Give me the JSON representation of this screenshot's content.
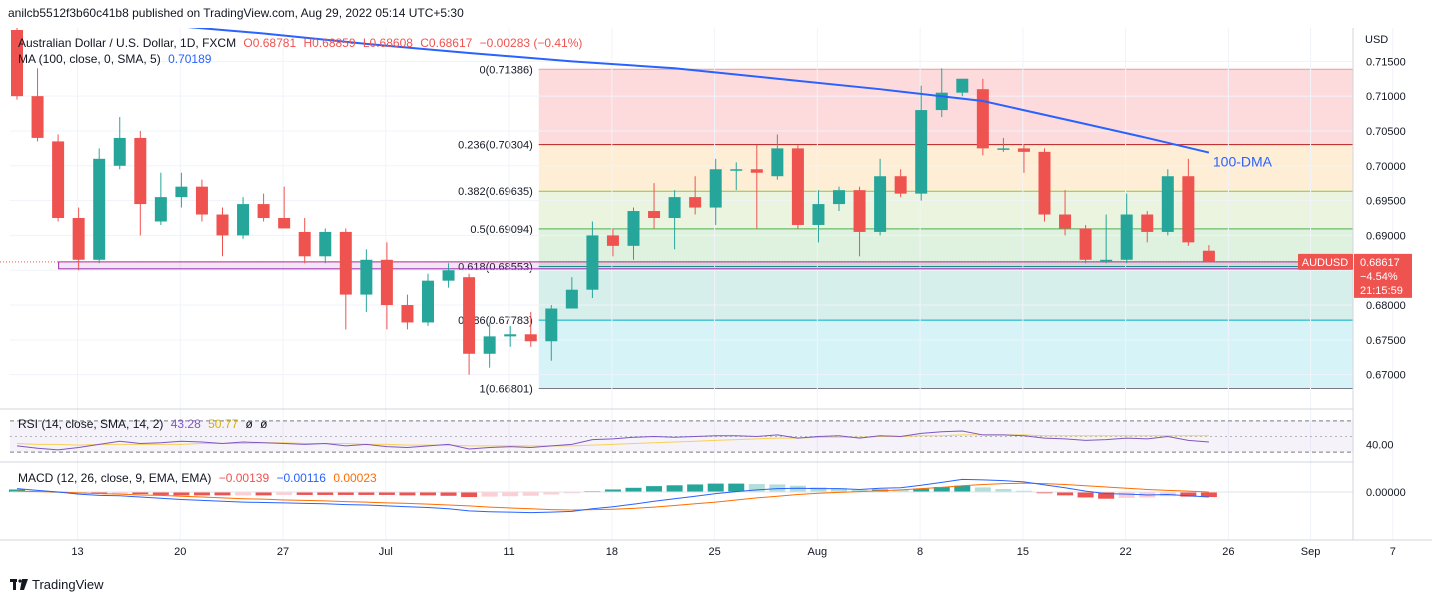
{
  "header": {
    "published_line": "anilcb5512f3b60c41b8 published on TradingView.com, Aug 29, 2022 05:14 UTC+5:30"
  },
  "main_legend": {
    "symbol": "Australian Dollar / U.S. Dollar, 1D, FXCM",
    "open": "O0.68781",
    "high": "H0.68859",
    "low": "L0.68608",
    "close": "C0.68617",
    "change": "−0.00283 (−0.41%)",
    "ma_label": "MA (100, close, 0, SMA, 5)",
    "ma_value": "0.70189"
  },
  "annotations": {
    "dma_label": "100-DMA"
  },
  "price_badge": {
    "symbol": "AUDUSD",
    "price": "0.68617",
    "change": "−4.54%",
    "countdown": "21:15:59"
  },
  "rsi_legend": {
    "label": "RSI (14, close, SMA, 14, 2)",
    "rsi": "43.28",
    "sma": "50.77",
    "v3": "ø",
    "v4": "ø"
  },
  "macd_legend": {
    "label": "MACD (12, 26, close, 9, EMA, EMA)",
    "hist": "−0.00139",
    "macd": "−0.00116",
    "signal": "0.00023"
  },
  "footer": {
    "brand": "TradingView"
  },
  "colors": {
    "up": "#26a69a",
    "down": "#ef5350",
    "ma": "#2962ff",
    "rsi": "#7e57c2",
    "rsi_sma": "#f7d154",
    "macd": "#2962ff",
    "signal": "#ff6d00"
  },
  "chart_data": {
    "type": "candlestick",
    "title": "Australian Dollar / U.S. Dollar, 1D, FXCM",
    "currency": "USD",
    "ylim": [
      0.6655,
      0.7195
    ],
    "y_ticks": [
      "0.71500",
      "0.71000",
      "0.70500",
      "0.70000",
      "0.69500",
      "0.69000",
      "0.68500",
      "0.68000",
      "0.67500",
      "0.67000"
    ],
    "x_tick_labels": [
      {
        "i": 1,
        "label": "13"
      },
      {
        "i": 6,
        "label": "20"
      },
      {
        "i": 11,
        "label": "27"
      },
      {
        "i": 16,
        "label": "Jul"
      },
      {
        "i": 22,
        "label": "11"
      },
      {
        "i": 27,
        "label": "18"
      },
      {
        "i": 32,
        "label": "25"
      },
      {
        "i": 37,
        "label": "Aug"
      },
      {
        "i": 42,
        "label": "8"
      },
      {
        "i": 47,
        "label": "15"
      },
      {
        "i": 52,
        "label": "22"
      },
      {
        "i": 57,
        "label": "26"
      },
      {
        "i": 61,
        "label": "Sep"
      },
      {
        "i": 65,
        "label": "7"
      }
    ],
    "candles": [
      {
        "o": 0.7195,
        "h": 0.72,
        "l": 0.7095,
        "c": 0.71
      },
      {
        "o": 0.71,
        "h": 0.714,
        "l": 0.7035,
        "c": 0.704
      },
      {
        "o": 0.7035,
        "h": 0.7045,
        "l": 0.692,
        "c": 0.6925
      },
      {
        "o": 0.6925,
        "h": 0.694,
        "l": 0.685,
        "c": 0.6865
      },
      {
        "o": 0.6865,
        "h": 0.7025,
        "l": 0.686,
        "c": 0.701
      },
      {
        "o": 0.7,
        "h": 0.707,
        "l": 0.6995,
        "c": 0.704
      },
      {
        "o": 0.704,
        "h": 0.705,
        "l": 0.69,
        "c": 0.6945
      },
      {
        "o": 0.692,
        "h": 0.699,
        "l": 0.6915,
        "c": 0.6955
      },
      {
        "o": 0.6955,
        "h": 0.699,
        "l": 0.694,
        "c": 0.697
      },
      {
        "o": 0.697,
        "h": 0.698,
        "l": 0.692,
        "c": 0.693
      },
      {
        "o": 0.693,
        "h": 0.694,
        "l": 0.687,
        "c": 0.69
      },
      {
        "o": 0.69,
        "h": 0.6955,
        "l": 0.6895,
        "c": 0.6945
      },
      {
        "o": 0.6945,
        "h": 0.696,
        "l": 0.692,
        "c": 0.6925
      },
      {
        "o": 0.6925,
        "h": 0.697,
        "l": 0.691,
        "c": 0.691
      },
      {
        "o": 0.6905,
        "h": 0.6925,
        "l": 0.686,
        "c": 0.687
      },
      {
        "o": 0.687,
        "h": 0.691,
        "l": 0.686,
        "c": 0.6905
      },
      {
        "o": 0.6905,
        "h": 0.691,
        "l": 0.6765,
        "c": 0.6815
      },
      {
        "o": 0.6815,
        "h": 0.688,
        "l": 0.679,
        "c": 0.6865
      },
      {
        "o": 0.6865,
        "h": 0.689,
        "l": 0.6765,
        "c": 0.68
      },
      {
        "o": 0.68,
        "h": 0.6815,
        "l": 0.6765,
        "c": 0.6775
      },
      {
        "o": 0.6775,
        "h": 0.6845,
        "l": 0.677,
        "c": 0.6835
      },
      {
        "o": 0.6835,
        "h": 0.686,
        "l": 0.6825,
        "c": 0.685
      },
      {
        "o": 0.684,
        "h": 0.6845,
        "l": 0.67,
        "c": 0.673
      },
      {
        "o": 0.673,
        "h": 0.6775,
        "l": 0.671,
        "c": 0.6755
      },
      {
        "o": 0.6755,
        "h": 0.677,
        "l": 0.674,
        "c": 0.6758
      },
      {
        "o": 0.6758,
        "h": 0.679,
        "l": 0.674,
        "c": 0.6748
      },
      {
        "o": 0.6748,
        "h": 0.68,
        "l": 0.672,
        "c": 0.6795
      },
      {
        "o": 0.6795,
        "h": 0.684,
        "l": 0.6795,
        "c": 0.6822
      },
      {
        "o": 0.6822,
        "h": 0.692,
        "l": 0.681,
        "c": 0.69
      },
      {
        "o": 0.69,
        "h": 0.691,
        "l": 0.687,
        "c": 0.6885
      },
      {
        "o": 0.6885,
        "h": 0.694,
        "l": 0.6865,
        "c": 0.6935
      },
      {
        "o": 0.6935,
        "h": 0.6975,
        "l": 0.691,
        "c": 0.6925
      },
      {
        "o": 0.6925,
        "h": 0.6965,
        "l": 0.688,
        "c": 0.6955
      },
      {
        "o": 0.6955,
        "h": 0.6985,
        "l": 0.693,
        "c": 0.694
      },
      {
        "o": 0.694,
        "h": 0.701,
        "l": 0.6915,
        "c": 0.6995
      },
      {
        "o": 0.6995,
        "h": 0.7005,
        "l": 0.6965,
        "c": 0.6995
      },
      {
        "o": 0.6995,
        "h": 0.703,
        "l": 0.691,
        "c": 0.699
      },
      {
        "o": 0.6985,
        "h": 0.7045,
        "l": 0.698,
        "c": 0.7025
      },
      {
        "o": 0.7025,
        "h": 0.703,
        "l": 0.691,
        "c": 0.6915
      },
      {
        "o": 0.6915,
        "h": 0.6965,
        "l": 0.689,
        "c": 0.6945
      },
      {
        "o": 0.6945,
        "h": 0.697,
        "l": 0.6935,
        "c": 0.6965
      },
      {
        "o": 0.6965,
        "h": 0.697,
        "l": 0.687,
        "c": 0.6905
      },
      {
        "o": 0.6905,
        "h": 0.701,
        "l": 0.69,
        "c": 0.6985
      },
      {
        "o": 0.6985,
        "h": 0.6995,
        "l": 0.6955,
        "c": 0.696
      },
      {
        "o": 0.696,
        "h": 0.7115,
        "l": 0.695,
        "c": 0.708
      },
      {
        "o": 0.708,
        "h": 0.714,
        "l": 0.707,
        "c": 0.7105
      },
      {
        "o": 0.7105,
        "h": 0.7125,
        "l": 0.71,
        "c": 0.7125
      },
      {
        "o": 0.711,
        "h": 0.7125,
        "l": 0.7015,
        "c": 0.7025
      },
      {
        "o": 0.7025,
        "h": 0.704,
        "l": 0.702,
        "c": 0.7025
      },
      {
        "o": 0.7025,
        "h": 0.703,
        "l": 0.699,
        "c": 0.702
      },
      {
        "o": 0.702,
        "h": 0.7025,
        "l": 0.692,
        "c": 0.693
      },
      {
        "o": 0.693,
        "h": 0.6965,
        "l": 0.69,
        "c": 0.691
      },
      {
        "o": 0.691,
        "h": 0.6915,
        "l": 0.686,
        "c": 0.6865
      },
      {
        "o": 0.6865,
        "h": 0.693,
        "l": 0.686,
        "c": 0.6865
      },
      {
        "o": 0.6865,
        "h": 0.696,
        "l": 0.686,
        "c": 0.693
      },
      {
        "o": 0.693,
        "h": 0.6935,
        "l": 0.689,
        "c": 0.6905
      },
      {
        "o": 0.6905,
        "h": 0.6995,
        "l": 0.69,
        "c": 0.6985
      },
      {
        "o": 0.6985,
        "h": 0.701,
        "l": 0.6885,
        "c": 0.689
      },
      {
        "o": 0.6878,
        "h": 0.6886,
        "l": 0.6861,
        "c": 0.6862
      }
    ],
    "ma100": [
      {
        "i": 8,
        "v": 0.72
      },
      {
        "i": 12,
        "v": 0.719
      },
      {
        "i": 17,
        "v": 0.7175
      },
      {
        "i": 22,
        "v": 0.7162
      },
      {
        "i": 27,
        "v": 0.715
      },
      {
        "i": 32,
        "v": 0.714
      },
      {
        "i": 37,
        "v": 0.7125
      },
      {
        "i": 42,
        "v": 0.711
      },
      {
        "i": 47,
        "v": 0.7093
      },
      {
        "i": 52,
        "v": 0.706
      },
      {
        "i": 55,
        "v": 0.704
      },
      {
        "i": 58,
        "v": 0.7019
      }
    ],
    "fibonacci": {
      "start_index": 25,
      "levels": [
        {
          "ratio": "0",
          "value": 0.71386,
          "label": "0(0.71386)"
        },
        {
          "ratio": "0.236",
          "value": 0.70304,
          "label": "0.236(0.70304)"
        },
        {
          "ratio": "0.382",
          "value": 0.69635,
          "label": "0.382(0.69635)"
        },
        {
          "ratio": "0.5",
          "value": 0.69094,
          "label": "0.5(0.69094)"
        },
        {
          "ratio": "0.618",
          "value": 0.68553,
          "label": "0.618(0.68553)"
        },
        {
          "ratio": "0.786",
          "value": 0.67783,
          "label": "0.786(0.67783)"
        },
        {
          "ratio": "1",
          "value": 0.66801,
          "label": "1(0.66801)"
        }
      ]
    },
    "support_zone": {
      "from_index": 3,
      "upper": 0.6862,
      "lower": 0.6852
    },
    "rsi": {
      "label_level": "40.00",
      "values": [
        38,
        35,
        33,
        36,
        40,
        44,
        41,
        42,
        44,
        43,
        41,
        43,
        42,
        41,
        40,
        41,
        38,
        40,
        37,
        36,
        38,
        40,
        34,
        36,
        37,
        36,
        38,
        40,
        46,
        47,
        49,
        50,
        49,
        50,
        51,
        51,
        50,
        52,
        48,
        50,
        51,
        48,
        51,
        50,
        54,
        56,
        57,
        52,
        52,
        51,
        48,
        47,
        45,
        46,
        48,
        47,
        50,
        45,
        43
      ],
      "sma": [
        41,
        40,
        40,
        39,
        40,
        40,
        40,
        40,
        40,
        41,
        41,
        41,
        42,
        42,
        41,
        41,
        41,
        40,
        40,
        39,
        39,
        39,
        38,
        38,
        38,
        38,
        38,
        38,
        39,
        40,
        41,
        42,
        43,
        44,
        45,
        46,
        47,
        48,
        48,
        49,
        49,
        49,
        50,
        50,
        51,
        51,
        52,
        52,
        52,
        52,
        51,
        51,
        51,
        51,
        51,
        51,
        51,
        51,
        51
      ]
    },
    "macd": {
      "zero_label": "0.00000",
      "macd": [
        0.0008,
        0.0004,
        0.0,
        -0.0005,
        -0.0008,
        -0.0009,
        -0.0012,
        -0.0015,
        -0.0018,
        -0.002,
        -0.0022,
        -0.0024,
        -0.0025,
        -0.0026,
        -0.0027,
        -0.0028,
        -0.003,
        -0.0031,
        -0.0033,
        -0.0035,
        -0.0037,
        -0.004,
        -0.0045,
        -0.0047,
        -0.0048,
        -0.0049,
        -0.0048,
        -0.0046,
        -0.004,
        -0.0035,
        -0.0029,
        -0.0022,
        -0.0016,
        -0.001,
        -0.0004,
        0.0001,
        0.0005,
        0.0008,
        0.0009,
        0.0008,
        0.0008,
        0.0006,
        0.0009,
        0.001,
        0.0016,
        0.0023,
        0.003,
        0.0029,
        0.0027,
        0.0024,
        0.0017,
        0.001,
        0.0002,
        -0.0004,
        -0.0005,
        -0.0007,
        -0.0006,
        -0.0009,
        -0.0012
      ],
      "signal": [
        0.0002,
        0.0001,
        0.0,
        -0.0002,
        -0.0004,
        -0.0005,
        -0.0007,
        -0.0008,
        -0.001,
        -0.0012,
        -0.0014,
        -0.0016,
        -0.0017,
        -0.0019,
        -0.002,
        -0.0021,
        -0.0023,
        -0.0024,
        -0.0026,
        -0.0027,
        -0.0029,
        -0.0031,
        -0.0033,
        -0.0036,
        -0.0038,
        -0.004,
        -0.0042,
        -0.0043,
        -0.0042,
        -0.0041,
        -0.0039,
        -0.0036,
        -0.0032,
        -0.0028,
        -0.0024,
        -0.0019,
        -0.0014,
        -0.001,
        -0.0006,
        -0.0003,
        -0.0001,
        0.0001,
        0.0003,
        0.0005,
        0.0008,
        0.0011,
        0.0015,
        0.0018,
        0.002,
        0.0021,
        0.002,
        0.0018,
        0.0015,
        0.0012,
        0.0009,
        0.0006,
        0.0004,
        0.0002,
        0.0
      ]
    }
  }
}
